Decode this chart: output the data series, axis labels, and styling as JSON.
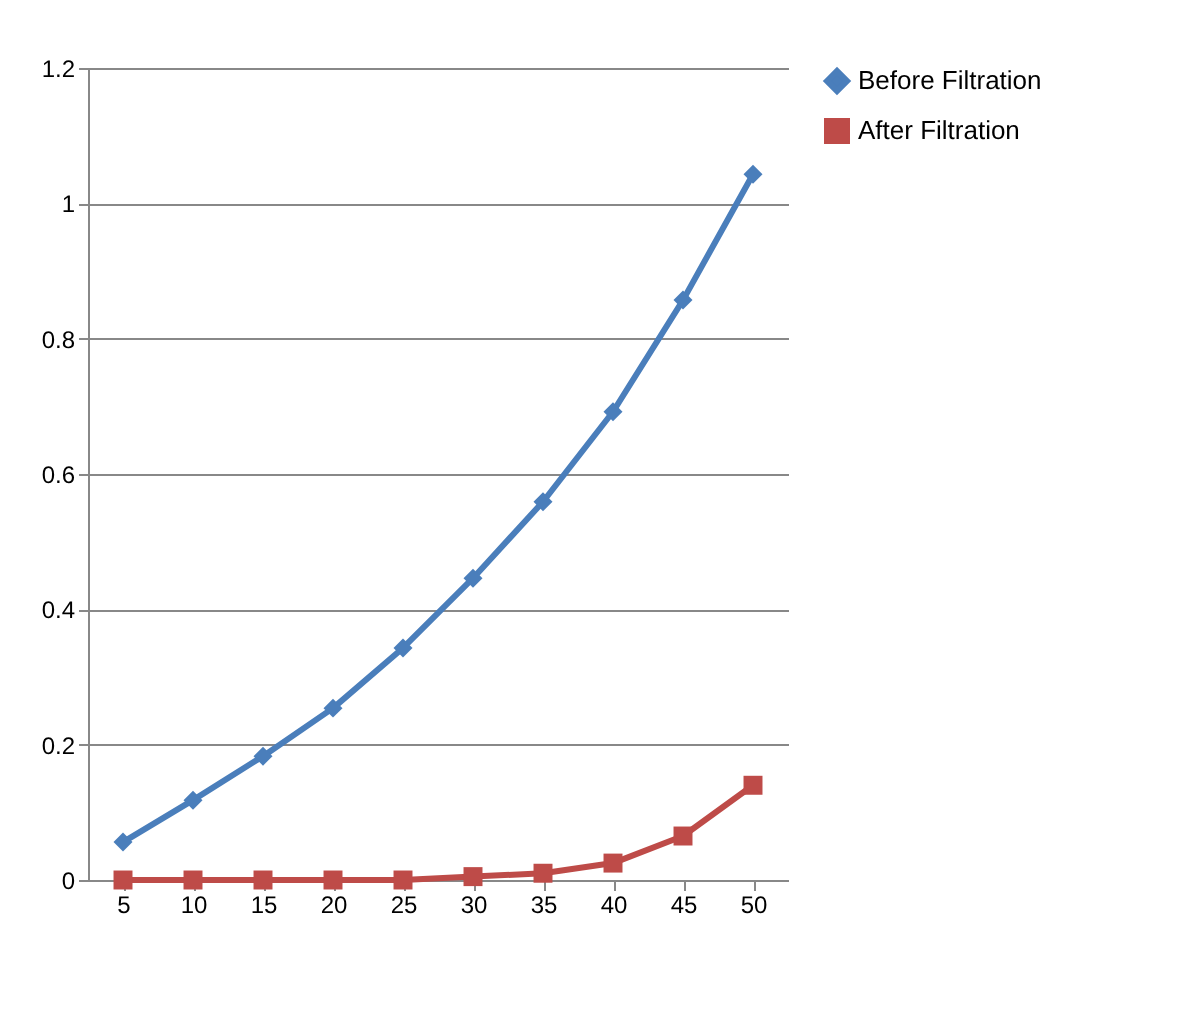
{
  "chart_data": {
    "type": "line",
    "categories": [
      "5",
      "10",
      "15",
      "20",
      "25",
      "30",
      "35",
      "40",
      "45",
      "50"
    ],
    "series": [
      {
        "name": "Before Filtration",
        "color": "#4a7ebb",
        "marker": "diamond",
        "values": [
          0.056,
          0.118,
          0.183,
          0.254,
          0.343,
          0.446,
          0.559,
          0.692,
          0.857,
          1.043
        ]
      },
      {
        "name": "After Filtration",
        "color": "#be4b48",
        "marker": "square",
        "values": [
          0,
          0,
          0,
          0,
          0,
          0.005,
          0.01,
          0.025,
          0.065,
          0.14
        ]
      }
    ],
    "ylim": [
      0,
      1.2
    ],
    "yticks": [
      0,
      0.2,
      0.4,
      0.6,
      0.8,
      1,
      1.2
    ],
    "grid": "y",
    "legend": "right",
    "line_style": "solid"
  }
}
